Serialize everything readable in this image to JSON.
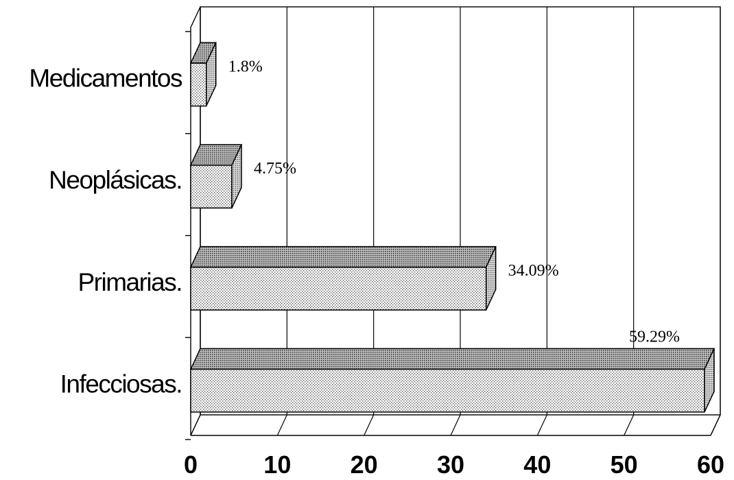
{
  "chart_data": {
    "type": "bar",
    "orientation": "horizontal",
    "categories": [
      "Infecciosas.",
      "Primarias.",
      "Neoplásicas.",
      "Medicamentos"
    ],
    "values": [
      59.29,
      34.09,
      4.75,
      1.8
    ],
    "data_labels": [
      "59.29%",
      "34.09%",
      "4.75%",
      "1.8%"
    ],
    "x_ticks": [
      "0",
      "10",
      "20",
      "30",
      "40",
      "50",
      "60"
    ],
    "xlim": [
      0,
      60
    ],
    "grid": "vertical",
    "style": "3d"
  }
}
